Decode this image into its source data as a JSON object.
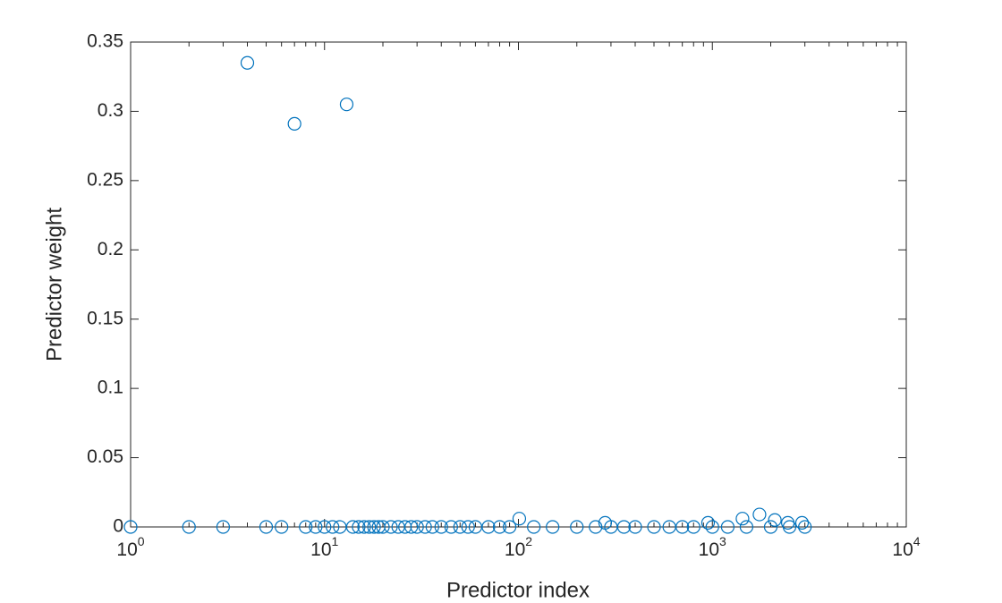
{
  "chart_data": {
    "type": "scatter",
    "x_label": "Predictor index",
    "y_label": "Predictor weight",
    "xscale": "log",
    "xlim": [
      1,
      10000
    ],
    "ylim": [
      0,
      0.35
    ],
    "xticks": [
      {
        "value": 1,
        "label": "10",
        "exponent": "0"
      },
      {
        "value": 10,
        "label": "10",
        "exponent": "1"
      },
      {
        "value": 100,
        "label": "10",
        "exponent": "2"
      },
      {
        "value": 1000,
        "label": "10",
        "exponent": "3"
      },
      {
        "value": 10000,
        "label": "10",
        "exponent": "4"
      }
    ],
    "yticks": [
      0,
      0.05,
      0.1,
      0.15,
      0.2,
      0.25,
      0.3,
      0.35
    ],
    "color": "#0072bd",
    "x": [
      1,
      2,
      3,
      4,
      5,
      6,
      7,
      8,
      9,
      10,
      11,
      12,
      13,
      14,
      15,
      16,
      17,
      18,
      19,
      20,
      22,
      24,
      26,
      28,
      30,
      33,
      36,
      40,
      45,
      50,
      55,
      60,
      70,
      80,
      90,
      101,
      120,
      150,
      200,
      250,
      280,
      300,
      350,
      400,
      500,
      600,
      700,
      800,
      950,
      1000,
      1200,
      1430,
      1500,
      1750,
      2000,
      2100,
      2450,
      2500,
      2900,
      3000
    ],
    "y": [
      0,
      0,
      0,
      0.335,
      0,
      0,
      0.291,
      0,
      0,
      0,
      0,
      0,
      0.305,
      0,
      0,
      0,
      0,
      0,
      0,
      0,
      0,
      0,
      0,
      0,
      0,
      0,
      0,
      0,
      0,
      0,
      0,
      0,
      0,
      0,
      0,
      0.006,
      0,
      0,
      0,
      0,
      0.003,
      0,
      0,
      0,
      0,
      0,
      0,
      0,
      0.003,
      0,
      0,
      0.006,
      0,
      0.009,
      0,
      0.005,
      0.003,
      0,
      0.003,
      0
    ]
  }
}
